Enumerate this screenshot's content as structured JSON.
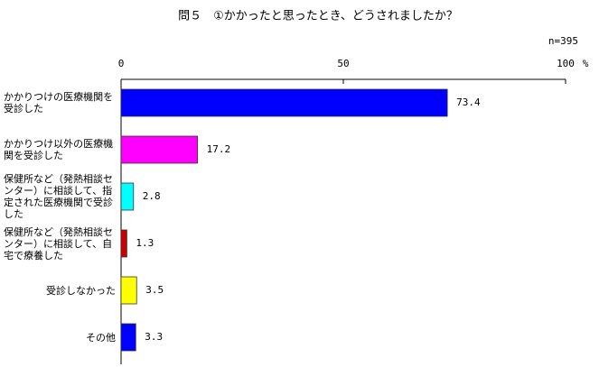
{
  "chart_data": {
    "type": "hbar",
    "title": "問５　①かかったと思ったとき、どうされましたか？",
    "annotation": "n=395",
    "x_unit": "%",
    "categories": [
      "かかりつけの医療機関を受診した",
      "かかりつけ以外の医療機関を受診した",
      "保健所など（発熱相談センター）に相談して、指定された医療機関で受診した",
      "保健所など（発熱相談センター）に相談して、自宅で療養した",
      "受診しなかった",
      "その他"
    ],
    "values": [
      73.4,
      17.2,
      2.8,
      1.3,
      3.5,
      3.3
    ],
    "colors": [
      "#0000ff",
      "#ff00ff",
      "#00ffff",
      "#cc0000",
      "#ffff00",
      "#0000ff"
    ],
    "xlim": [
      0,
      100
    ],
    "xticks": [
      0,
      50,
      100
    ],
    "grid": false
  }
}
